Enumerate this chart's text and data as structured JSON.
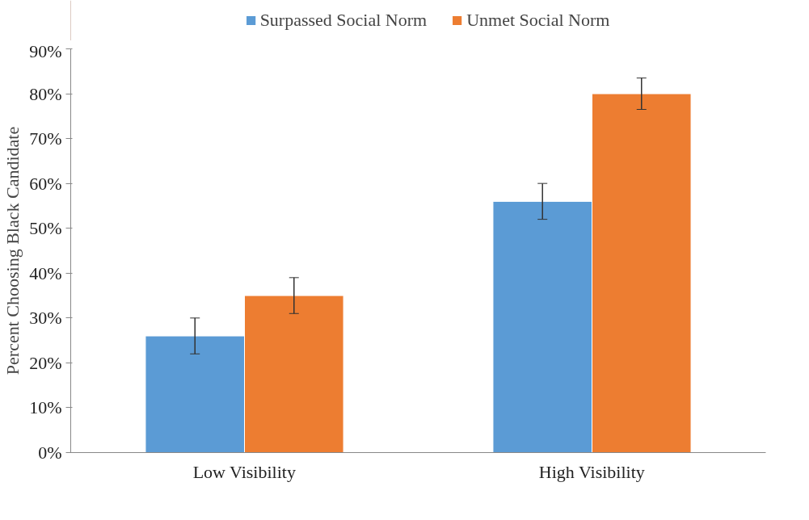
{
  "chart_data": {
    "type": "bar",
    "ylabel": "Percent Choosing Black Candidate",
    "categories": [
      "Low Visibility",
      "High Visibility"
    ],
    "series": [
      {
        "name": "Surpassed Social Norm",
        "color": "#5b9bd5",
        "values": [
          26,
          56
        ],
        "errors": [
          4,
          4
        ]
      },
      {
        "name": "Unmet Social Norm",
        "color": "#ed7d31",
        "values": [
          35,
          80
        ],
        "errors": [
          4,
          3.5
        ]
      }
    ],
    "ylim": [
      0,
      90
    ],
    "yticks": [
      {
        "value": 0,
        "label": "0%"
      },
      {
        "value": 10,
        "label": "10%"
      },
      {
        "value": 20,
        "label": "20%"
      },
      {
        "value": 30,
        "label": "30%"
      },
      {
        "value": 40,
        "label": "40%"
      },
      {
        "value": 50,
        "label": "50%"
      },
      {
        "value": 60,
        "label": "60%"
      },
      {
        "value": 70,
        "label": "70%"
      },
      {
        "value": 80,
        "label": "80%"
      },
      {
        "value": 90,
        "label": "90%"
      }
    ],
    "grid": false,
    "legend": "top"
  }
}
